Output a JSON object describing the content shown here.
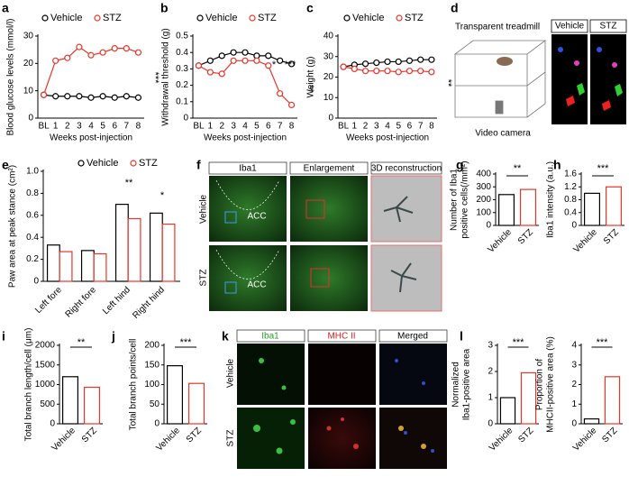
{
  "chart_data": [
    {
      "type": "line",
      "panel": "a",
      "categories": [
        "BL",
        "1",
        "2",
        "3",
        "4",
        "5",
        "6",
        "7",
        "8"
      ],
      "series": [
        {
          "name": "Vehicle",
          "color": "#000000",
          "values": [
            8.5,
            8,
            8,
            8,
            7.5,
            8,
            7.5,
            8,
            7.5
          ]
        },
        {
          "name": "STZ",
          "color": "#e8352a",
          "values": [
            8.5,
            21,
            22,
            26,
            23,
            24,
            25.5,
            25.5,
            24
          ]
        }
      ],
      "ylim": [
        0,
        30
      ],
      "yticks": [
        0,
        10,
        20,
        30
      ],
      "ylabel": "Blood glucose levels (mmol/l)",
      "xlabel": "Weeks post-injection",
      "annotations": [
        "***"
      ]
    },
    {
      "type": "line",
      "panel": "b",
      "categories": [
        "BL",
        "1",
        "2",
        "3",
        "4",
        "5",
        "6",
        "7",
        "8"
      ],
      "series": [
        {
          "name": "Vehicle",
          "color": "#000000",
          "values": [
            0.32,
            0.35,
            0.38,
            0.4,
            0.4,
            0.38,
            0.38,
            0.35,
            0.33
          ]
        },
        {
          "name": "STZ",
          "color": "#e8352a",
          "values": [
            0.32,
            0.28,
            0.27,
            0.35,
            0.35,
            0.35,
            0.32,
            0.15,
            0.08
          ]
        }
      ],
      "ylim": [
        0,
        0.5
      ],
      "yticks": [
        0,
        0.1,
        0.2,
        0.3,
        0.4,
        0.5
      ],
      "ylabel": "Withdrawal threshold (g)",
      "xlabel": "Weeks post-injection",
      "annotations": [
        "*",
        "***",
        "**"
      ]
    },
    {
      "type": "line",
      "panel": "c",
      "categories": [
        "BL",
        "1",
        "2",
        "3",
        "4",
        "5",
        "6",
        "7",
        "8"
      ],
      "series": [
        {
          "name": "Vehicle",
          "color": "#000000",
          "values": [
            25,
            26,
            26.5,
            27,
            27.5,
            27.5,
            28,
            28.5,
            28.5
          ]
        },
        {
          "name": "STZ",
          "color": "#e8352a",
          "values": [
            25,
            24,
            23,
            23,
            23,
            22.5,
            23,
            23,
            22.5
          ]
        }
      ],
      "ylim": [
        0,
        40
      ],
      "yticks": [
        0,
        10,
        20,
        30,
        40
      ],
      "ylabel": "Weight (g)",
      "xlabel": "Weeks post-injection",
      "annotations": [
        "**"
      ]
    },
    {
      "type": "groupbar",
      "panel": "e",
      "categories": [
        "Left fore",
        "Right fore",
        "Left hind",
        "Right hind"
      ],
      "series": [
        {
          "name": "Vehicle",
          "color": "#000000",
          "values": [
            0.33,
            0.28,
            0.7,
            0.62
          ]
        },
        {
          "name": "STZ",
          "color": "#e8352a",
          "values": [
            0.27,
            0.25,
            0.57,
            0.52
          ]
        }
      ],
      "ylim": [
        0,
        1
      ],
      "yticks": [
        0,
        0.2,
        0.4,
        0.6,
        0.8,
        {
          "value": 1,
          "label": "1.0"
        }
      ],
      "ylabel": "Paw area at peak stance (cm²)",
      "annotations": [
        "**",
        "*"
      ]
    },
    {
      "type": "bar",
      "panel": "g",
      "categories": [
        "Vehicle",
        "STZ"
      ],
      "values": [
        240,
        280
      ],
      "colors": [
        "#000000",
        "#e8352a"
      ],
      "ylim": [
        0,
        400
      ],
      "yticks": [
        0,
        100,
        200,
        300,
        400
      ],
      "ylabel": [
        "Number of Iba1",
        "positive cells(/mm²)"
      ],
      "annotations": [
        "**"
      ]
    },
    {
      "type": "bar",
      "panel": "h",
      "categories": [
        "Vehicle",
        "STZ"
      ],
      "values": [
        1.0,
        1.2
      ],
      "colors": [
        "#000000",
        "#e8352a"
      ],
      "ylim": [
        0,
        1.6
      ],
      "yticks": [
        0,
        0.4,
        0.8,
        1.2,
        1.6
      ],
      "ylabel": [
        "Iba1 intensity (a.u.)"
      ],
      "annotations": [
        "***"
      ]
    },
    {
      "type": "bar",
      "panel": "i",
      "categories": [
        "Vehicle",
        "STZ"
      ],
      "values": [
        1200,
        930
      ],
      "colors": [
        "#000000",
        "#e8352a"
      ],
      "ylim": [
        0,
        2000
      ],
      "yticks": [
        0,
        500,
        1000,
        1500,
        2000
      ],
      "ylabel": [
        "Total branch length/cell (μm)"
      ],
      "annotations": [
        "**"
      ]
    },
    {
      "type": "bar",
      "panel": "j",
      "categories": [
        "Vehicle",
        "STZ"
      ],
      "values": [
        148,
        103
      ],
      "colors": [
        "#000000",
        "#e8352a"
      ],
      "ylim": [
        0,
        200
      ],
      "yticks": [
        0,
        50,
        100,
        150,
        200
      ],
      "ylabel": [
        "Total branch points/cell"
      ],
      "annotations": [
        "***"
      ]
    },
    {
      "type": "bar",
      "panel": "l",
      "categories": [
        "Vehicle",
        "STZ"
      ],
      "values": [
        1.0,
        1.95
      ],
      "colors": [
        "#000000",
        "#e8352a"
      ],
      "ylim": [
        0,
        3
      ],
      "yticks": [
        0,
        1,
        2,
        3
      ],
      "ylabel": [
        "Normalized",
        "Iba1-positive area"
      ],
      "annotations": [
        "***"
      ]
    },
    {
      "type": "bar",
      "categories": [
        "Vehicle",
        "STZ"
      ],
      "values": [
        0.25,
        2.4
      ],
      "colors": [
        "#000000",
        "#e8352a"
      ],
      "ylim": [
        0,
        4
      ],
      "yticks": [
        0,
        1,
        2,
        3,
        4
      ],
      "ylabel": [
        "Proportion of",
        "MHCII-positive area (%)"
      ],
      "annotations": [
        "***"
      ]
    }
  ],
  "figure": {
    "d": {
      "panel": "d",
      "title": "Transparent treadmill",
      "camera": "Video camera",
      "columns": [
        "Vehicle",
        "STZ"
      ]
    },
    "f": {
      "panel": "f",
      "columns": [
        "Iba1",
        "Enlargement",
        "3D reconstruction"
      ],
      "rows": [
        "Vehicle",
        "STZ"
      ],
      "region": "ACC"
    },
    "k": {
      "panel": "k",
      "columns": [
        "Iba1",
        "MHC II",
        "Merged"
      ],
      "rows": [
        "Vehicle",
        "STZ"
      ]
    }
  }
}
